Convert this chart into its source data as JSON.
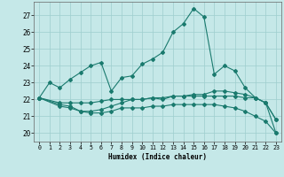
{
  "xlabel": "Humidex (Indice chaleur)",
  "xlim": [
    -0.5,
    23.5
  ],
  "ylim": [
    19.5,
    27.8
  ],
  "xticks": [
    0,
    1,
    2,
    3,
    4,
    5,
    6,
    7,
    8,
    9,
    10,
    11,
    12,
    13,
    14,
    15,
    16,
    17,
    18,
    19,
    20,
    21,
    22,
    23
  ],
  "yticks": [
    20,
    21,
    22,
    23,
    24,
    25,
    26,
    27
  ],
  "bg_color": "#c5e8e8",
  "grid_color": "#9ecece",
  "line_color": "#1a7a6e",
  "curves": {
    "curve1": {
      "x": [
        0,
        1,
        2,
        3,
        4,
        5,
        6,
        7,
        8,
        9,
        10,
        11,
        12,
        13,
        14,
        15,
        16,
        17,
        18,
        19,
        20,
        21,
        22,
        23
      ],
      "y": [
        22.1,
        23.0,
        22.7,
        23.2,
        23.6,
        24.0,
        24.2,
        22.5,
        23.3,
        23.4,
        24.1,
        24.4,
        24.8,
        26.0,
        26.5,
        27.4,
        26.9,
        23.5,
        24.0,
        23.7,
        22.7,
        22.1,
        21.8,
        20.8
      ]
    },
    "curve2": {
      "x": [
        0,
        2,
        3,
        4,
        5,
        6,
        7,
        8,
        9,
        10,
        11,
        12,
        13,
        14,
        15,
        16,
        17,
        18,
        19,
        20,
        21,
        22,
        23
      ],
      "y": [
        22.1,
        21.8,
        21.8,
        21.8,
        21.8,
        21.9,
        22.0,
        22.0,
        22.0,
        22.0,
        22.1,
        22.1,
        22.2,
        22.2,
        22.3,
        22.3,
        22.5,
        22.5,
        22.4,
        22.3,
        22.1,
        21.8,
        20.0
      ]
    },
    "curve3": {
      "x": [
        0,
        2,
        3,
        4,
        5,
        6,
        7,
        8,
        9,
        10,
        11,
        12,
        13,
        14,
        15,
        16,
        17,
        18,
        19,
        20,
        21,
        22,
        23
      ],
      "y": [
        22.1,
        21.7,
        21.6,
        21.3,
        21.3,
        21.4,
        21.6,
        21.8,
        22.0,
        22.0,
        22.1,
        22.0,
        22.2,
        22.2,
        22.2,
        22.2,
        22.2,
        22.2,
        22.2,
        22.1,
        22.1,
        21.8,
        20.8
      ]
    },
    "curve4": {
      "x": [
        0,
        2,
        3,
        4,
        5,
        6,
        7,
        8,
        9,
        10,
        11,
        12,
        13,
        14,
        15,
        16,
        17,
        18,
        19,
        20,
        21,
        22,
        23
      ],
      "y": [
        22.1,
        21.6,
        21.5,
        21.3,
        21.2,
        21.2,
        21.3,
        21.5,
        21.5,
        21.5,
        21.6,
        21.6,
        21.7,
        21.7,
        21.7,
        21.7,
        21.7,
        21.6,
        21.5,
        21.3,
        21.0,
        20.7,
        20.0
      ]
    }
  }
}
